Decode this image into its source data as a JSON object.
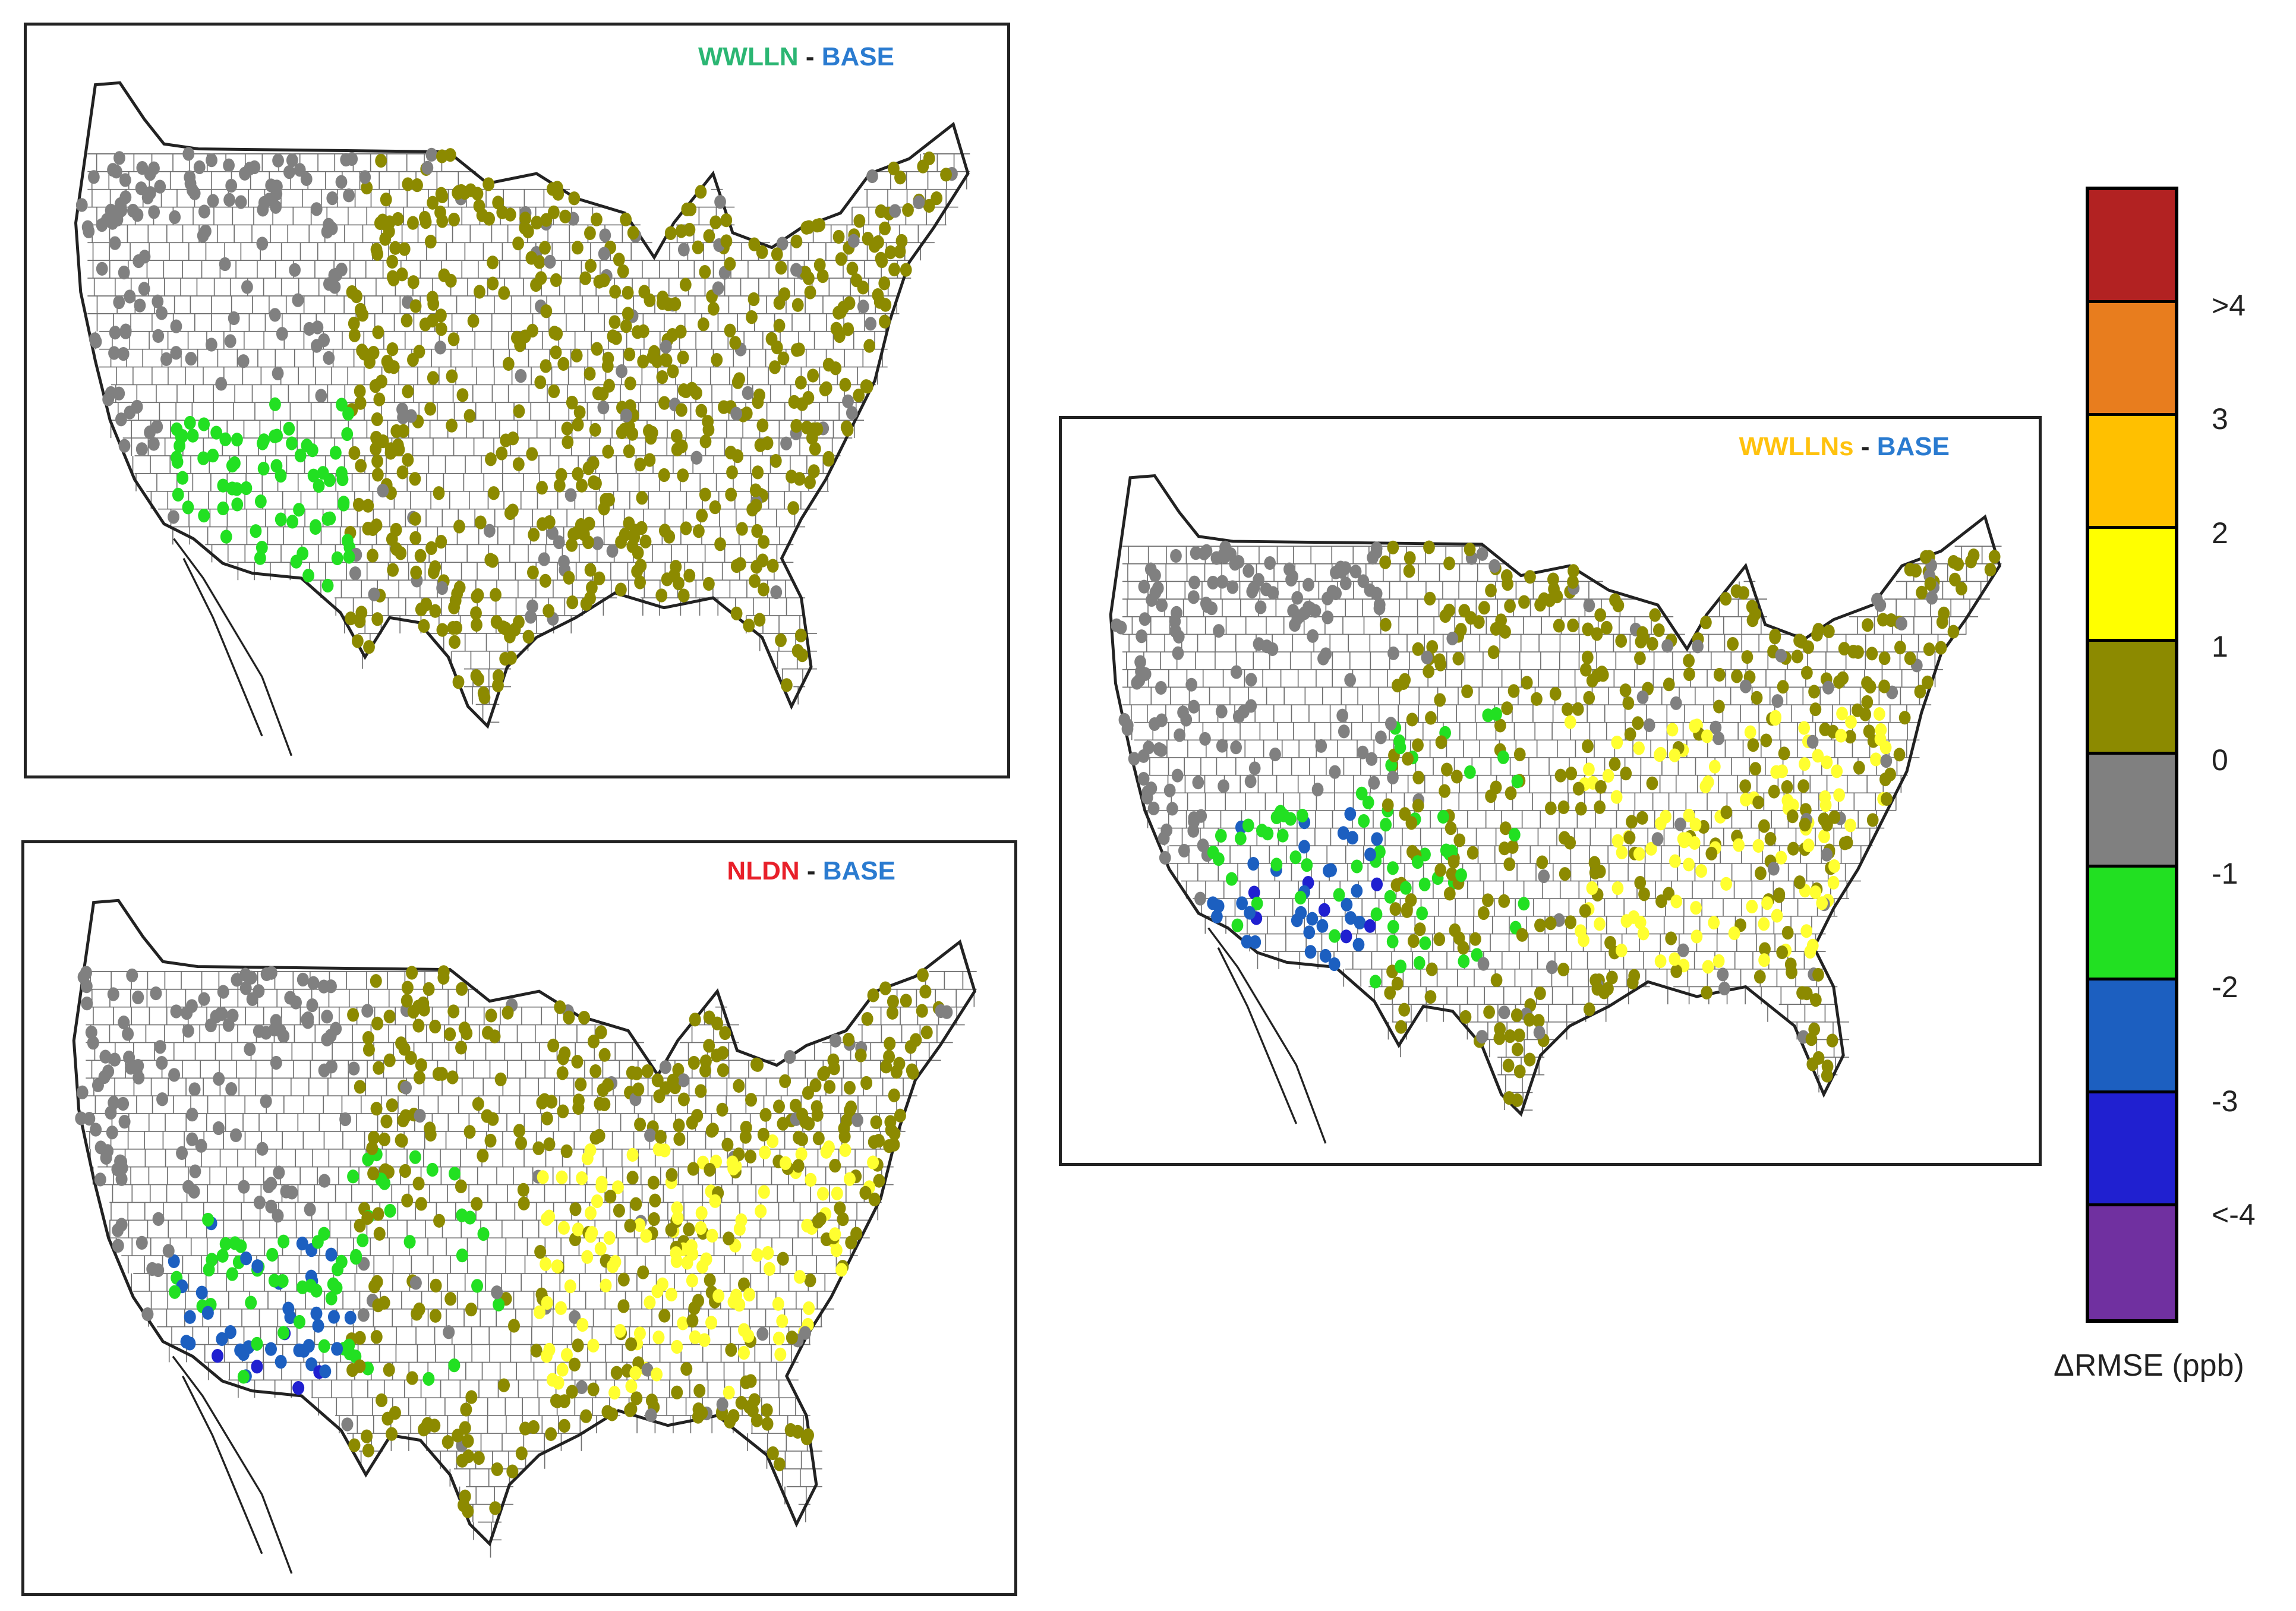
{
  "colors": {
    "olive": "#8c8a00",
    "gray": "#808080",
    "light_green": "#22e022",
    "mid_blue": "#1c5fc0",
    "blue": "#2020d0",
    "yellow": "#ffff30",
    "orange": "#f0a020",
    "purple": "#7030a0",
    "title_green": "#2bb673",
    "title_red": "#e8202a",
    "title_yellow": "#ffc20e",
    "title_blue": "#2a7bd0"
  },
  "panels": [
    {
      "id": "a",
      "title_left": "WWLLN",
      "title_sep": "-",
      "title_right": "BASE",
      "title_left_color": "#2bb673",
      "regions": {
        "west": "gray",
        "southwest": "light_green",
        "east": "olive",
        "south_central": "olive"
      }
    },
    {
      "id": "b",
      "title_left": "NLDN",
      "title_sep": "-",
      "title_right": "BASE",
      "title_left_color": "#e8202a",
      "regions": {
        "west": "gray",
        "southwest": "mixed_blue_green",
        "east": "olive",
        "south_central": "yellow"
      }
    },
    {
      "id": "c",
      "title_left": "WWLLNs",
      "title_sep": "-",
      "title_right": "BASE",
      "title_left_color": "#ffc20e",
      "regions": {
        "west": "gray",
        "southwest": "mixed_blue_green",
        "east": "olive",
        "south_central": "yellow"
      }
    }
  ],
  "legend": {
    "label": "ΔRMSE (ppb)",
    "colors": [
      "#b22222",
      "#e87d1e",
      "#ffc000",
      "#ffff00",
      "#8c8a00",
      "#808080",
      "#22e022",
      "#1c5fc0",
      "#2020d0",
      "#7030a0"
    ],
    "ticks": [
      ">4",
      "3",
      "2",
      "1",
      "0",
      "-1",
      "-2",
      "-3",
      "<-4"
    ]
  }
}
